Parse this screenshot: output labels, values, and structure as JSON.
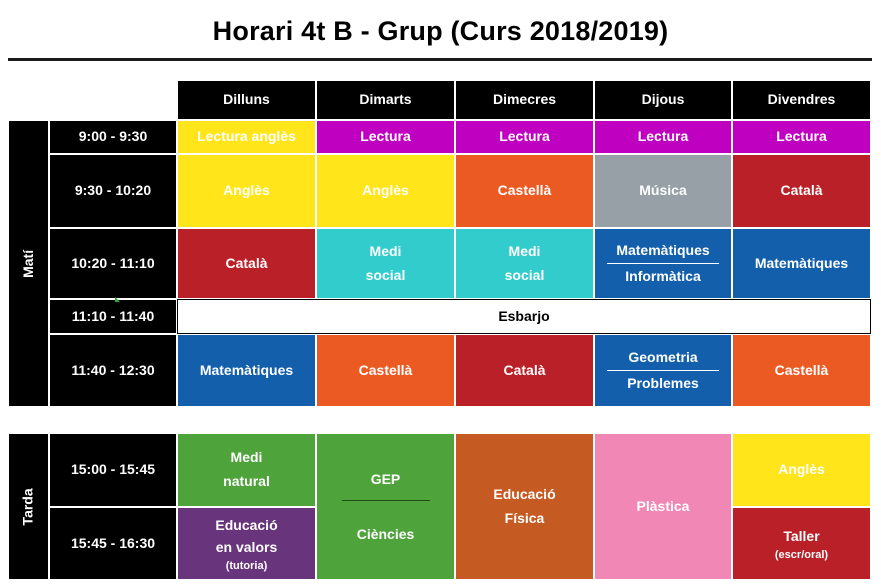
{
  "title": "Horari 4t B - Grup (Curs 2018/2019)",
  "days": [
    "Dilluns",
    "Dimarts",
    "Dimecres",
    "Dijous",
    "Divendres"
  ],
  "sessions": {
    "morning": "Matí",
    "afternoon": "Tarda"
  },
  "times": {
    "t1": "9:00  -  9:30",
    "t2": "9:30  -  10:20",
    "t3": "10:20  -  11:10",
    "t4": "11:10  -  11:40",
    "t5": "11:40  -  12:30",
    "t6": "15:00  -  15:45",
    "t7": "15:45  -  16:30"
  },
  "cells": {
    "r1": [
      "Lectura anglès",
      "Lectura",
      "Lectura",
      "Lectura",
      "Lectura"
    ],
    "r2": [
      "Anglès",
      "Anglès",
      "Castellà",
      "Música",
      "Català"
    ],
    "r3": {
      "mon": "Català",
      "tue_a": "Medi",
      "tue_b": "social",
      "wed_a": "Medi",
      "wed_b": "social",
      "thu_a": "Matemàtiques",
      "thu_b": "Informàtica",
      "fri": "Matemàtiques"
    },
    "break": "Esbarjo",
    "r5": {
      "mon": "Matemàtiques",
      "tue": "Castellà",
      "wed": "Català",
      "thu_a": "Geometria",
      "thu_b": "Problemes",
      "fri": "Castellà"
    },
    "afternoon": {
      "mon_1a": "Medi",
      "mon_1b": "natural",
      "mon_2a": "Educació",
      "mon_2b": "en valors",
      "mon_2c": "(tutoria)",
      "tue_a": "GEP",
      "tue_b": "Ciències",
      "wed_a": "Educació",
      "wed_b": "Física",
      "thu": "Plàstica",
      "fri_1": "Anglès",
      "fri_2a": "Taller",
      "fri_2b": "(escr/oral)"
    }
  },
  "colors": {
    "yellow": "#ffe51a",
    "magenta": "#c000c0",
    "orange": "#ec5a24",
    "grey": "#97a0a6",
    "red": "#b92027",
    "cyan": "#33cccc",
    "blue": "#135fac",
    "green": "#4ea33b",
    "brown": "#c55a22",
    "pink": "#f087b4",
    "purple": "#68347c",
    "black": "#000000"
  }
}
